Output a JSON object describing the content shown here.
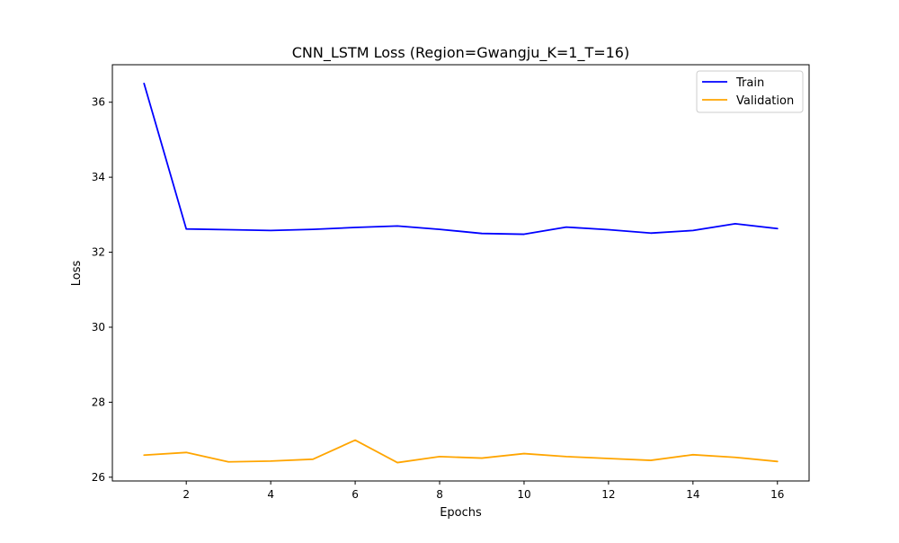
{
  "chart_data": {
    "type": "line",
    "title": "CNN_LSTM Loss (Region=Gwangju_K=1_T=16)",
    "xlabel": "Epochs",
    "ylabel": "Loss",
    "x": [
      1,
      2,
      3,
      4,
      5,
      6,
      7,
      8,
      9,
      10,
      11,
      12,
      13,
      14,
      15,
      16
    ],
    "xlim": [
      0.25,
      16.75
    ],
    "ylim": [
      25.9,
      37.0
    ],
    "xticks": [
      2,
      4,
      6,
      8,
      10,
      12,
      14,
      16
    ],
    "yticks": [
      26,
      28,
      30,
      32,
      34,
      36
    ],
    "grid": false,
    "legend_position": "top-right",
    "series": [
      {
        "name": "Train",
        "color": "#0000ff",
        "values": [
          36.5,
          32.62,
          32.6,
          32.58,
          32.61,
          32.66,
          32.7,
          32.61,
          32.5,
          32.48,
          32.67,
          32.6,
          32.51,
          32.58,
          32.76,
          32.63
        ]
      },
      {
        "name": "Validation",
        "color": "#ffa500",
        "values": [
          26.59,
          26.66,
          26.41,
          26.43,
          26.48,
          26.99,
          26.39,
          26.55,
          26.51,
          26.63,
          26.55,
          26.5,
          26.45,
          26.6,
          26.53,
          26.42
        ]
      }
    ]
  }
}
